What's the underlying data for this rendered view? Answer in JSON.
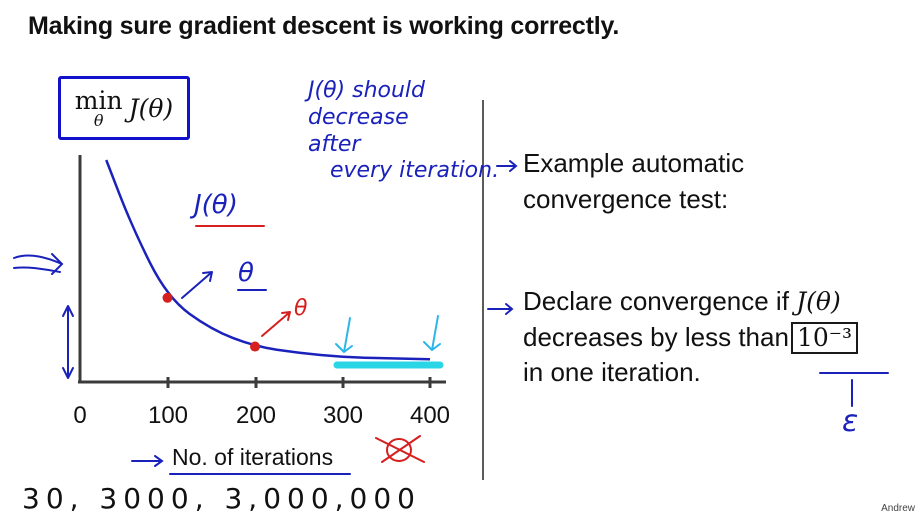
{
  "slide": {
    "title": "Making sure gradient descent is working correctly.",
    "credit": "Andrew"
  },
  "plot": {
    "ylabel_min": "min",
    "ylabel_sub": "θ",
    "ylabel_fn": "J(θ)",
    "xlabel": "No. of iterations",
    "xticks": [
      "0",
      "100",
      "200",
      "300",
      "400"
    ]
  },
  "bullets": {
    "b1_line1": "Example automatic",
    "b1_line2": "convergence test:",
    "b2_part1": "Declare convergence if",
    "b2_math": "J(θ)",
    "b2_line2": "decreases by less than",
    "b2_box": "10⁻³",
    "b2_line3": "in one iteration."
  },
  "handwriting": {
    "note1": "J(θ) should",
    "note2": "decrease",
    "note3": "after",
    "note4": "every iteration.",
    "curve_label": "J(θ)",
    "theta1": "θ",
    "theta2": "θ",
    "epsilon": "ε",
    "bottom_numbers": "30, 3000, 3,000,000"
  },
  "chart_data": {
    "type": "line",
    "x": [
      30,
      60,
      100,
      150,
      200,
      250,
      300,
      350,
      400
    ],
    "y": [
      1.0,
      0.68,
      0.35,
      0.2,
      0.12,
      0.09,
      0.07,
      0.065,
      0.06
    ],
    "xlabel": "No. of iterations",
    "ylabel": "min J(θ)",
    "xlim": [
      0,
      430
    ],
    "marked_points": [
      100,
      200
    ],
    "colors": {
      "curve": "#1a22bb",
      "markers": "#d62020",
      "highlight": "#2ad5e6"
    }
  }
}
